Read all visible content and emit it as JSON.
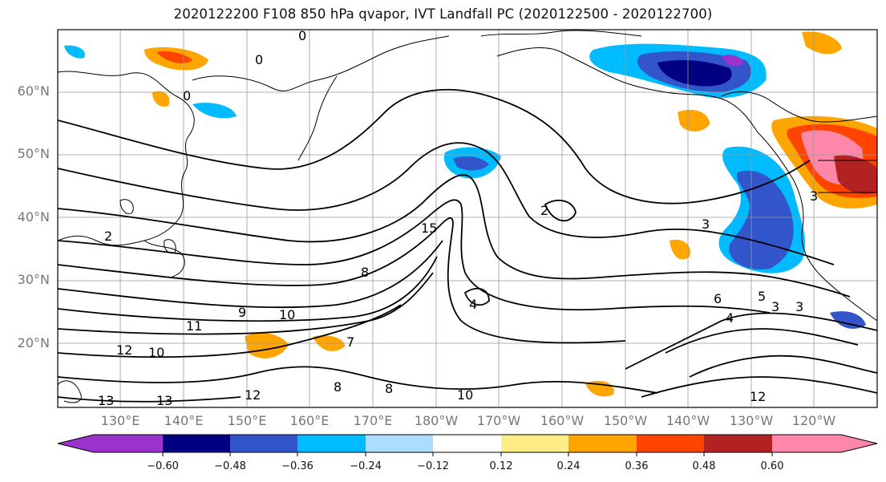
{
  "title": "2020122200 F108 850 hPa qvapor, IVT Landfall PC (2020122500 - 2020122700)",
  "lat_labels": [
    "60°N",
    "50°N",
    "40°N",
    "30°N",
    "20°N"
  ],
  "lon_labels": [
    "130°E",
    "140°E",
    "150°E",
    "160°E",
    "170°E",
    "180°W",
    "170°W",
    "160°W",
    "150°W",
    "140°W",
    "130°W",
    "120°W"
  ],
  "colorbar": {
    "colors": [
      "#9933cc",
      "#000080",
      "#3355cc",
      "#00bbff",
      "#aaddff",
      "#ffffff",
      "#ffee88",
      "#ffa500",
      "#ff4400",
      "#b22222",
      "#ff88aa"
    ],
    "tick_labels": [
      "−0.60",
      "−0.48",
      "−0.36",
      "−0.24",
      "−0.12",
      "0.12",
      "0.24",
      "0.36",
      "0.48",
      "0.60"
    ]
  },
  "contour_labels": [
    "0",
    "0",
    "0",
    "2",
    "3",
    "4",
    "5",
    "6",
    "7",
    "8",
    "8",
    "8",
    "9",
    "10",
    "10",
    "10",
    "11",
    "12",
    "12",
    "13",
    "13",
    "15",
    "2",
    "3",
    "3",
    "3",
    "4",
    "12"
  ]
}
